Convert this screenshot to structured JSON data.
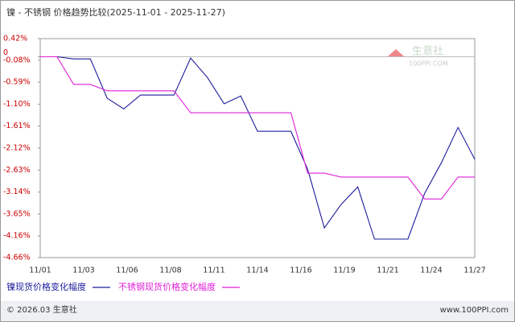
{
  "chart_data": {
    "type": "line",
    "title": "镍 - 不锈钢 价格趋势比较(2025-11-01 - 2025-11-27)",
    "watermark": {
      "name": "生意社",
      "site": "100PPI.COM"
    },
    "footer": {
      "left": "© 2026.03 生意社",
      "right": "www.100PPI.com"
    },
    "xticks": [
      "11/01",
      "11/03",
      "11/06",
      "11/08",
      "11/11",
      "11/14",
      "11/16",
      "11/19",
      "11/21",
      "11/24",
      "11/27"
    ],
    "ylim": [
      -4.66,
      0.42
    ],
    "yticks": [
      {
        "value": 0.42,
        "label": "0.42%"
      },
      0,
      {
        "value": -0.08,
        "label": "-0.08%"
      },
      {
        "value": -0.59,
        "label": "-0.59%"
      },
      {
        "value": -1.1,
        "label": "-1.10%"
      },
      {
        "value": -1.61,
        "label": "-1.61%"
      },
      {
        "value": -2.12,
        "label": "-2.12%"
      },
      {
        "value": -2.63,
        "label": "-2.63%"
      },
      {
        "value": -3.14,
        "label": "-3.14%"
      },
      {
        "value": -3.65,
        "label": "-3.65%"
      },
      {
        "value": -4.16,
        "label": "-4.16%"
      },
      {
        "value": -4.66,
        "label": "-4.66%"
      }
    ],
    "series": [
      {
        "name": "镍现货价格变化幅度",
        "color": "#1c1c9c",
        "values": [
          0,
          0,
          -0.05,
          -0.05,
          -0.96,
          -1.21,
          -0.89,
          -0.89,
          -0.89,
          -0.03,
          -0.48,
          -1.09,
          -0.91,
          -1.73,
          -1.73,
          -1.73,
          -2.61,
          -3.97,
          -3.43,
          -3.02,
          -4.23,
          -4.23,
          -4.23,
          -3.17,
          -2.46,
          -1.64,
          -2.38
        ]
      },
      {
        "name": "不锈钢现货价格变化幅度",
        "color": "#e020d8",
        "values": [
          0,
          0,
          -0.64,
          -0.64,
          -0.79,
          -0.79,
          -0.79,
          -0.79,
          -0.79,
          -1.3,
          -1.3,
          -1.3,
          -1.3,
          -1.3,
          -1.3,
          -1.3,
          -2.7,
          -2.7,
          -2.79,
          -2.79,
          -2.79,
          -2.79,
          -2.79,
          -3.3,
          -3.3,
          -2.79,
          -2.79
        ]
      }
    ]
  }
}
